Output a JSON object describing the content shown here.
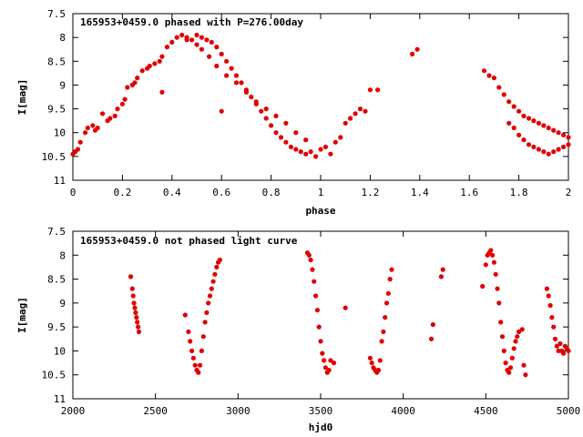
{
  "chart_data": [
    {
      "type": "scatter",
      "title": "165953+0459.0 phased with P=276.00day",
      "xlabel": "phase",
      "ylabel": "I[mag]",
      "xlim": [
        0,
        2
      ],
      "ylim": [
        7.5,
        11
      ],
      "y_inverted": true,
      "xticks": [
        "0",
        "0.2",
        "0.4",
        "0.6",
        "0.8",
        "1",
        "1.2",
        "1.4",
        "1.6",
        "1.8",
        "2"
      ],
      "yticks": [
        "7.5",
        "8",
        "8.5",
        "9",
        "9.5",
        "10",
        "10.5",
        "11"
      ],
      "grid": false,
      "series": [
        {
          "color": "#e00000",
          "x": [
            0.0,
            0.01,
            0.02,
            0.03,
            0.05,
            0.06,
            0.08,
            0.09,
            0.1,
            0.12,
            0.14,
            0.15,
            0.17,
            0.18,
            0.2,
            0.21,
            0.22,
            0.24,
            0.25,
            0.26,
            0.28,
            0.3,
            0.31,
            0.33,
            0.35,
            0.36,
            0.38,
            0.4,
            0.42,
            0.44,
            0.46,
            0.48,
            0.5,
            0.52,
            0.54,
            0.56,
            0.58,
            0.6,
            0.62,
            0.64,
            0.66,
            0.68,
            0.7,
            0.72,
            0.74,
            0.76,
            0.78,
            0.8,
            0.82,
            0.84,
            0.86,
            0.88,
            0.9,
            0.92,
            0.94,
            0.96,
            0.98,
            1.0,
            1.02,
            1.04,
            1.06,
            1.08,
            1.1,
            1.12,
            1.14,
            1.16,
            1.18,
            1.2,
            0.36,
            0.6,
            0.46,
            0.5,
            0.52,
            0.55,
            0.58,
            0.62,
            0.66,
            0.7,
            0.74,
            0.78,
            0.82,
            0.86,
            0.9,
            0.94,
            1.37,
            1.39,
            1.23,
            1.66,
            1.68,
            1.7,
            1.72,
            1.74,
            1.76,
            1.78,
            1.8,
            1.82,
            1.84,
            1.86,
            1.88,
            1.9,
            1.92,
            1.94,
            1.96,
            1.98,
            2.0,
            1.76,
            1.78,
            1.8,
            1.82,
            1.84,
            1.86,
            1.88,
            1.9,
            1.92,
            1.94,
            1.96,
            1.98,
            2.0
          ],
          "y": [
            10.45,
            10.4,
            10.35,
            10.2,
            10.0,
            9.9,
            9.85,
            9.95,
            9.9,
            9.6,
            9.75,
            9.7,
            9.65,
            9.5,
            9.4,
            9.3,
            9.05,
            9.0,
            8.95,
            8.85,
            8.7,
            8.65,
            8.6,
            8.55,
            8.5,
            8.4,
            8.2,
            8.1,
            8.0,
            7.95,
            8.0,
            8.05,
            7.95,
            8.0,
            8.05,
            8.1,
            8.2,
            8.35,
            8.5,
            8.65,
            8.8,
            8.95,
            9.1,
            9.25,
            9.4,
            9.55,
            9.7,
            9.85,
            10.0,
            10.1,
            10.2,
            10.3,
            10.35,
            10.4,
            10.45,
            10.4,
            10.5,
            10.35,
            10.3,
            10.45,
            10.2,
            10.1,
            9.8,
            9.7,
            9.6,
            9.5,
            9.55,
            9.1,
            9.15,
            9.55,
            8.05,
            8.15,
            8.25,
            8.4,
            8.6,
            8.8,
            8.95,
            9.15,
            9.35,
            9.5,
            9.65,
            9.8,
            10.0,
            10.15,
            8.35,
            8.25,
            9.1,
            8.7,
            8.8,
            8.85,
            9.05,
            9.2,
            9.35,
            9.45,
            9.55,
            9.65,
            9.7,
            9.75,
            9.8,
            9.85,
            9.9,
            9.95,
            10.0,
            10.05,
            10.1,
            9.8,
            9.9,
            10.05,
            10.15,
            10.25,
            10.3,
            10.35,
            10.4,
            10.45,
            10.4,
            10.35,
            10.3,
            10.25
          ]
        }
      ]
    },
    {
      "type": "scatter",
      "title": "165953+0459.0 not phased light curve",
      "xlabel": "hjd0",
      "ylabel": "I[mag]",
      "xlim": [
        2000,
        5000
      ],
      "ylim": [
        7.5,
        11
      ],
      "y_inverted": true,
      "xticks": [
        "2000",
        "2500",
        "3000",
        "3500",
        "4000",
        "4500",
        "5000"
      ],
      "yticks": [
        "7.5",
        "8",
        "8.5",
        "9",
        "9.5",
        "10",
        "10.5",
        "11"
      ],
      "grid": false,
      "series": [
        {
          "color": "#e00000",
          "x": [
            2350,
            2360,
            2365,
            2370,
            2375,
            2380,
            2385,
            2390,
            2395,
            2400,
            2680,
            2700,
            2710,
            2720,
            2730,
            2740,
            2750,
            2760,
            2770,
            2780,
            2790,
            2800,
            2810,
            2820,
            2830,
            2840,
            2850,
            2860,
            2870,
            2880,
            2890,
            3420,
            3430,
            3440,
            3450,
            3460,
            3470,
            3480,
            3490,
            3500,
            3510,
            3520,
            3530,
            3540,
            3550,
            3560,
            3580,
            3650,
            3800,
            3810,
            3820,
            3830,
            3840,
            3850,
            3860,
            3870,
            3880,
            3890,
            3900,
            3910,
            3920,
            3930,
            4170,
            4180,
            4230,
            4240,
            4480,
            4500,
            4510,
            4520,
            4530,
            4540,
            4550,
            4560,
            4570,
            4580,
            4590,
            4600,
            4610,
            4620,
            4630,
            4640,
            4650,
            4660,
            4670,
            4680,
            4690,
            4700,
            4720,
            4730,
            4740,
            4870,
            4880,
            4890,
            4900,
            4910,
            4920,
            4930,
            4940,
            4950,
            4960,
            4970,
            4980,
            4990,
            5000
          ],
          "y": [
            8.45,
            8.7,
            8.85,
            9.0,
            9.1,
            9.2,
            9.3,
            9.4,
            9.5,
            9.6,
            9.25,
            9.6,
            9.8,
            10.0,
            10.15,
            10.3,
            10.4,
            10.45,
            10.3,
            10.0,
            9.7,
            9.4,
            9.2,
            9.0,
            8.85,
            8.7,
            8.55,
            8.4,
            8.25,
            8.15,
            8.1,
            7.95,
            8.0,
            8.1,
            8.3,
            8.55,
            8.85,
            9.15,
            9.5,
            9.8,
            10.05,
            10.2,
            10.35,
            10.45,
            10.4,
            10.2,
            10.25,
            9.1,
            10.15,
            10.25,
            10.35,
            10.4,
            10.45,
            10.4,
            10.2,
            9.8,
            9.6,
            9.3,
            9.0,
            8.8,
            8.5,
            8.3,
            9.75,
            9.45,
            8.45,
            8.3,
            8.65,
            8.2,
            8.0,
            7.95,
            7.9,
            8.0,
            8.15,
            8.4,
            8.7,
            9.0,
            9.4,
            9.7,
            10.0,
            10.25,
            10.4,
            10.45,
            10.35,
            10.15,
            9.95,
            9.8,
            9.7,
            9.6,
            9.55,
            10.3,
            10.5,
            8.7,
            8.85,
            9.05,
            9.3,
            9.5,
            9.75,
            9.9,
            10.0,
            9.85,
            10.0,
            10.05,
            9.9,
            9.95,
            10.0
          ]
        }
      ]
    }
  ]
}
